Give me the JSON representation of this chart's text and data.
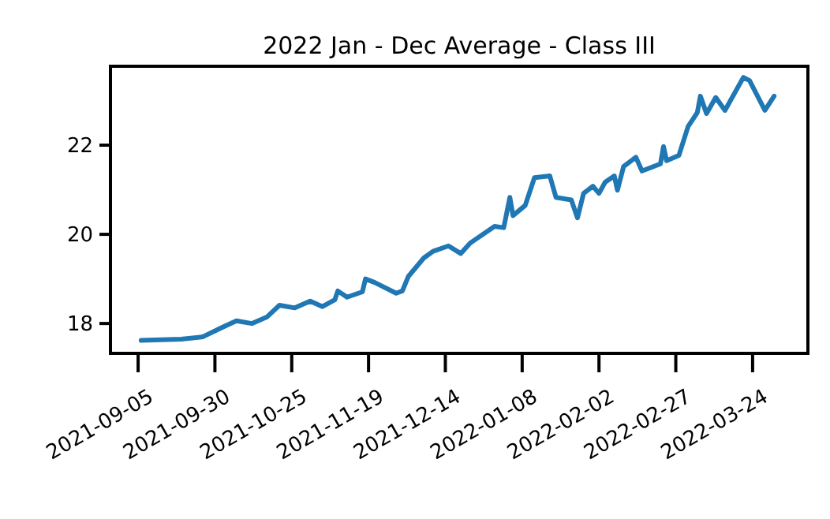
{
  "chart_data": {
    "type": "line",
    "title": "2022 Jan - Dec Average - Class III",
    "x": [
      "2021-09-06",
      "2021-09-19",
      "2021-09-26",
      "2021-10-02",
      "2021-10-07",
      "2021-10-12",
      "2021-10-17",
      "2021-10-21",
      "2021-10-26",
      "2021-10-31",
      "2021-11-04",
      "2021-11-08",
      "2021-11-09",
      "2021-11-12",
      "2021-11-17",
      "2021-11-18",
      "2021-11-21",
      "2021-11-28",
      "2021-11-30",
      "2021-12-02",
      "2021-12-07",
      "2021-12-10",
      "2021-12-15",
      "2021-12-19",
      "2021-12-22",
      "2021-12-30",
      "2022-01-02",
      "2022-01-04",
      "2022-01-05",
      "2022-01-09",
      "2022-01-12",
      "2022-01-17",
      "2022-01-19",
      "2022-01-24",
      "2022-01-26",
      "2022-01-28",
      "2022-01-31",
      "2022-02-02",
      "2022-02-04",
      "2022-02-07",
      "2022-02-08",
      "2022-02-10",
      "2022-02-14",
      "2022-02-16",
      "2022-02-22",
      "2022-02-23",
      "2022-02-24",
      "2022-02-28",
      "2022-03-03",
      "2022-03-06",
      "2022-03-07",
      "2022-03-09",
      "2022-03-12",
      "2022-03-15",
      "2022-03-21",
      "2022-03-23",
      "2022-03-28",
      "2022-03-31"
    ],
    "series": [
      {
        "color": "#1f77b4",
        "values": [
          17.62,
          17.65,
          17.7,
          17.9,
          18.06,
          18.0,
          18.15,
          18.41,
          18.35,
          18.5,
          18.38,
          18.53,
          18.73,
          18.59,
          18.71,
          19.0,
          18.92,
          18.68,
          18.73,
          19.06,
          19.47,
          19.62,
          19.74,
          19.57,
          19.8,
          20.18,
          20.15,
          20.83,
          20.42,
          20.65,
          21.27,
          21.31,
          20.83,
          20.77,
          20.37,
          20.92,
          21.08,
          20.92,
          21.17,
          21.31,
          20.99,
          21.52,
          21.73,
          21.42,
          21.58,
          21.97,
          21.65,
          21.77,
          22.42,
          22.73,
          23.1,
          22.71,
          23.07,
          22.78,
          23.52,
          23.45,
          22.78,
          23.1
        ]
      }
    ],
    "xlim": [
      "2021-08-27",
      "2022-04-11"
    ],
    "xticks": [
      "2021-09-05",
      "2021-09-30",
      "2021-10-25",
      "2021-11-19",
      "2021-12-14",
      "2022-01-08",
      "2022-02-02",
      "2022-02-27",
      "2022-03-24"
    ],
    "ylim": [
      17.33,
      23.77
    ],
    "yticks": [
      18,
      20,
      22
    ],
    "grid": false,
    "marker": "none",
    "line_style": "solid"
  }
}
